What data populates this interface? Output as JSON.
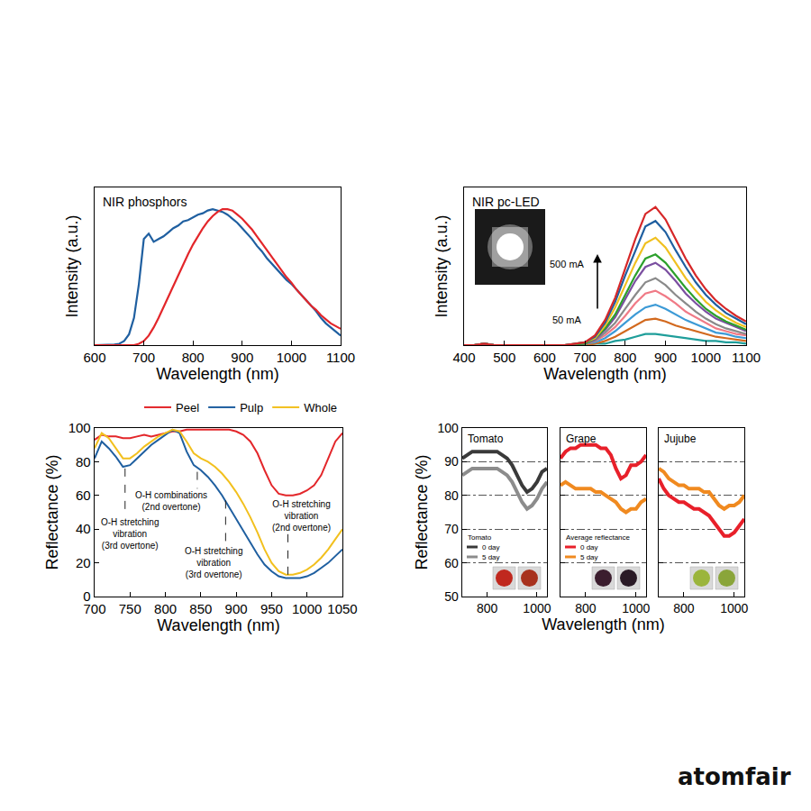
{
  "chart_data": [
    {
      "type": "line",
      "title": "NIR phosphors",
      "x_label": "Wavelength (nm)",
      "y_label": "Intensity (a.u.)",
      "xlim": [
        600,
        1100
      ],
      "xticks": [
        600,
        700,
        800,
        900,
        1000,
        1100
      ],
      "ylim": [
        0,
        1.16
      ],
      "tick_labels": "x",
      "x": [
        600,
        610,
        620,
        630,
        640,
        650,
        660,
        670,
        680,
        690,
        700,
        710,
        720,
        730,
        740,
        750,
        760,
        770,
        780,
        790,
        800,
        810,
        820,
        830,
        840,
        850,
        860,
        870,
        880,
        890,
        900,
        910,
        920,
        930,
        940,
        950,
        960,
        970,
        980,
        990,
        1000,
        1010,
        1020,
        1030,
        1040,
        1050,
        1060,
        1070,
        1080,
        1090,
        1100
      ],
      "series": [
        {
          "color": "#1f5fa0",
          "values": [
            0,
            0,
            0,
            0,
            0.005,
            0.01,
            0.03,
            0.08,
            0.2,
            0.45,
            0.78,
            0.82,
            0.76,
            0.78,
            0.8,
            0.83,
            0.86,
            0.88,
            0.91,
            0.92,
            0.94,
            0.96,
            0.97,
            0.99,
            1.0,
            0.99,
            0.98,
            0.96,
            0.93,
            0.9,
            0.86,
            0.82,
            0.78,
            0.73,
            0.69,
            0.64,
            0.6,
            0.56,
            0.52,
            0.48,
            0.45,
            0.41,
            0.37,
            0.33,
            0.29,
            0.25,
            0.2,
            0.16,
            0.13,
            0.1,
            0.07
          ]
        },
        {
          "color": "#e3262a",
          "values": [
            0,
            0,
            0,
            0,
            0,
            0,
            0,
            0,
            0,
            0.01,
            0.03,
            0.07,
            0.13,
            0.2,
            0.28,
            0.36,
            0.44,
            0.52,
            0.6,
            0.67,
            0.74,
            0.8,
            0.86,
            0.91,
            0.95,
            0.98,
            1.0,
            1.0,
            0.99,
            0.96,
            0.93,
            0.89,
            0.85,
            0.8,
            0.75,
            0.7,
            0.65,
            0.6,
            0.55,
            0.5,
            0.46,
            0.41,
            0.37,
            0.33,
            0.29,
            0.26,
            0.22,
            0.19,
            0.16,
            0.14,
            0.12
          ]
        }
      ]
    },
    {
      "type": "line",
      "title": "NIR pc-LED",
      "x_label": "Wavelength (nm)",
      "y_label": "Intensity (a.u.)",
      "xlim": [
        400,
        1100
      ],
      "xticks": [
        400,
        500,
        600,
        700,
        800,
        900,
        1000,
        1100
      ],
      "ylim": [
        0,
        1.13
      ],
      "tick_labels": "x",
      "annotations": [
        {
          "text": "500 mA",
          "x": 655,
          "y": 0.58
        },
        {
          "text": "50 mA",
          "x": 655,
          "y": 0.18
        }
      ],
      "x": [
        400,
        425,
        450,
        475,
        500,
        550,
        600,
        650,
        700,
        725,
        750,
        775,
        800,
        825,
        850,
        875,
        900,
        925,
        950,
        975,
        1000,
        1025,
        1050,
        1075,
        1100
      ],
      "series": [
        {
          "color": "#1f9e9a",
          "values": [
            0,
            0,
            0.01,
            0,
            0,
            0,
            0,
            0,
            0,
            0.01,
            0.01,
            0.03,
            0.04,
            0.06,
            0.08,
            0.08,
            0.07,
            0.06,
            0.05,
            0.04,
            0.03,
            0.03,
            0.02,
            0.02,
            0.01
          ]
        },
        {
          "color": "#d2691e",
          "values": [
            0,
            0,
            0.01,
            0,
            0,
            0,
            0,
            0,
            0,
            0.01,
            0.03,
            0.06,
            0.1,
            0.14,
            0.18,
            0.19,
            0.17,
            0.14,
            0.12,
            0.1,
            0.08,
            0.06,
            0.05,
            0.04,
            0.03
          ]
        },
        {
          "color": "#3c9ad6",
          "values": [
            0,
            0,
            0.01,
            0,
            0,
            0,
            0,
            0,
            0.01,
            0.02,
            0.05,
            0.1,
            0.16,
            0.22,
            0.27,
            0.29,
            0.26,
            0.22,
            0.18,
            0.15,
            0.12,
            0.09,
            0.08,
            0.06,
            0.05
          ]
        },
        {
          "color": "#f07a86",
          "values": [
            0,
            0,
            0.01,
            0,
            0,
            0,
            0,
            0,
            0.01,
            0.03,
            0.07,
            0.13,
            0.21,
            0.3,
            0.37,
            0.39,
            0.35,
            0.3,
            0.24,
            0.2,
            0.16,
            0.12,
            0.1,
            0.08,
            0.07
          ]
        },
        {
          "color": "#8a8a8a",
          "values": [
            0,
            0,
            0.01,
            0,
            0,
            0,
            0,
            0,
            0.01,
            0.03,
            0.09,
            0.16,
            0.26,
            0.36,
            0.45,
            0.48,
            0.43,
            0.36,
            0.3,
            0.24,
            0.19,
            0.15,
            0.12,
            0.1,
            0.08
          ]
        },
        {
          "color": "#7b4fa0",
          "values": [
            0,
            0,
            0.01,
            0,
            0,
            0,
            0,
            0,
            0.01,
            0.04,
            0.11,
            0.2,
            0.33,
            0.46,
            0.56,
            0.59,
            0.54,
            0.46,
            0.37,
            0.3,
            0.24,
            0.19,
            0.16,
            0.13,
            0.1
          ]
        },
        {
          "color": "#2ca02c",
          "values": [
            0,
            0,
            0.01,
            0,
            0,
            0,
            0,
            0,
            0.01,
            0.05,
            0.12,
            0.22,
            0.36,
            0.5,
            0.62,
            0.65,
            0.59,
            0.5,
            0.41,
            0.33,
            0.26,
            0.21,
            0.17,
            0.14,
            0.11
          ]
        },
        {
          "color": "#f0c020",
          "values": [
            0,
            0,
            0.01,
            0,
            0,
            0,
            0,
            0,
            0.02,
            0.05,
            0.14,
            0.27,
            0.43,
            0.59,
            0.73,
            0.77,
            0.7,
            0.59,
            0.48,
            0.39,
            0.31,
            0.25,
            0.2,
            0.16,
            0.13
          ]
        },
        {
          "color": "#1f5fa0",
          "values": [
            0,
            0,
            0.01,
            0,
            0,
            0,
            0,
            0,
            0.02,
            0.06,
            0.16,
            0.31,
            0.5,
            0.68,
            0.85,
            0.89,
            0.81,
            0.68,
            0.56,
            0.45,
            0.36,
            0.29,
            0.23,
            0.19,
            0.15
          ]
        },
        {
          "color": "#d62728",
          "values": [
            0,
            0,
            0.01,
            0,
            0,
            0,
            0,
            0,
            0.02,
            0.07,
            0.18,
            0.34,
            0.55,
            0.76,
            0.94,
            0.99,
            0.9,
            0.76,
            0.62,
            0.5,
            0.4,
            0.32,
            0.26,
            0.21,
            0.17
          ]
        }
      ]
    },
    {
      "type": "line",
      "x_label": "Wavelength (nm)",
      "y_label": "Reflectance (%)",
      "xlim": [
        700,
        1050
      ],
      "xticks": [
        700,
        750,
        800,
        850,
        900,
        950,
        1000,
        1050
      ],
      "ylim": [
        0,
        100
      ],
      "yticks": [
        0,
        20,
        40,
        60,
        80,
        100
      ],
      "legend": "top",
      "annotations": [
        {
          "text": "O-H stretching vibration (3rd overtone)",
          "x": 750,
          "y": 37,
          "mark_x": 743,
          "mark_y": [
            76,
            48
          ]
        },
        {
          "text": "O-H combinations (2nd overtone)",
          "x": 808,
          "y": 56.5,
          "mark_x": 845,
          "mark_y": [
            74,
            64
          ]
        },
        {
          "text": "O-H stretching vibration (3rd overtone)",
          "x": 868,
          "y": 20,
          "mark_x": 885,
          "mark_y": [
            57,
            31
          ]
        },
        {
          "text": "O-H stretching vibration (2nd overtone)",
          "x": 992,
          "y": 48,
          "mark_x": 973,
          "mark_y": [
            37,
            12
          ]
        }
      ],
      "x": [
        700,
        710,
        720,
        730,
        740,
        750,
        760,
        770,
        780,
        790,
        800,
        810,
        820,
        830,
        840,
        850,
        860,
        870,
        880,
        890,
        900,
        910,
        920,
        930,
        940,
        950,
        960,
        970,
        980,
        990,
        1000,
        1010,
        1020,
        1030,
        1040,
        1050
      ],
      "series": [
        {
          "name": "Peel",
          "color": "#e3262a",
          "values": [
            93,
            96,
            95,
            95,
            94,
            94,
            95,
            96,
            95,
            96,
            97,
            98,
            98,
            99,
            99,
            99,
            99,
            99,
            99,
            99,
            98,
            96,
            92,
            85,
            75,
            66,
            61,
            60,
            60,
            61,
            63,
            66,
            72,
            82,
            92,
            97
          ]
        },
        {
          "name": "Pulp",
          "color": "#1f5fa0",
          "values": [
            82,
            92,
            88,
            83,
            77,
            78,
            82,
            86,
            90,
            93,
            96,
            99,
            97,
            86,
            78,
            75,
            71,
            66,
            60,
            53,
            46,
            39,
            32,
            25,
            19,
            15,
            12,
            11,
            11,
            11,
            12,
            14,
            17,
            20,
            24,
            28
          ]
        },
        {
          "name": "Whole",
          "color": "#f2c01e",
          "values": [
            88,
            97,
            94,
            88,
            82,
            82,
            85,
            89,
            92,
            95,
            97,
            99,
            98,
            92,
            85,
            82,
            80,
            77,
            73,
            68,
            62,
            55,
            47,
            38,
            28,
            20,
            15,
            13,
            13,
            14,
            16,
            19,
            23,
            28,
            34,
            40
          ]
        }
      ]
    },
    {
      "type": "line",
      "title": "Tomato",
      "y_label": "Reflectance (%)",
      "xlim": [
        700,
        1040
      ],
      "xticks": [
        800,
        1000
      ],
      "ylim": [
        50,
        100
      ],
      "yticks": [
        50,
        60,
        70,
        80,
        90,
        100
      ],
      "grid": true,
      "legend": "lower left",
      "legend_title": "Tomato",
      "x": [
        700,
        720,
        740,
        760,
        780,
        800,
        820,
        840,
        860,
        880,
        900,
        920,
        940,
        960,
        980,
        1000,
        1020,
        1040
      ],
      "series": [
        {
          "name": "0 day",
          "color": "#3a3a3a",
          "values": [
            91,
            92,
            93,
            93,
            93,
            93,
            93,
            93,
            92,
            91,
            89,
            86,
            83,
            81,
            82,
            84,
            87,
            88
          ]
        },
        {
          "name": "5 day",
          "color": "#8c8c8c",
          "values": [
            86,
            87,
            88,
            88,
            88,
            88,
            88,
            88,
            87,
            86,
            84,
            81,
            78,
            76,
            77,
            79,
            82,
            84
          ]
        }
      ]
    },
    {
      "type": "line",
      "title": "Grape",
      "x_label": "Wavelength (nm)",
      "xlim": [
        700,
        1040
      ],
      "xticks": [
        800,
        1000
      ],
      "ylim": [
        50,
        100
      ],
      "yticks": [
        50,
        60,
        70,
        80,
        90,
        100
      ],
      "grid": true,
      "tick_labels": "x",
      "legend": "lower left",
      "legend_title": "Average reflectance",
      "x": [
        700,
        720,
        740,
        760,
        780,
        800,
        820,
        840,
        860,
        880,
        900,
        920,
        940,
        960,
        980,
        1000,
        1020,
        1040
      ],
      "series": [
        {
          "name": "0 day",
          "color": "#e8202a",
          "values": [
            91,
            93,
            94,
            94,
            95,
            95,
            95,
            95,
            94,
            94,
            92,
            88,
            85,
            86,
            89,
            89,
            90,
            92
          ]
        },
        {
          "name": "5 day",
          "color": "#f08a20",
          "values": [
            83,
            84,
            83,
            82,
            82,
            82,
            82,
            81,
            81,
            80,
            79,
            78,
            76,
            75,
            76,
            76,
            78,
            79
          ]
        }
      ]
    },
    {
      "type": "line",
      "title": "Jujube",
      "xlim": [
        700,
        1040
      ],
      "xticks": [
        800,
        1000
      ],
      "ylim": [
        50,
        100
      ],
      "yticks": [
        50,
        60,
        70,
        80,
        90,
        100
      ],
      "grid": true,
      "tick_labels": "x",
      "x": [
        700,
        720,
        740,
        760,
        780,
        800,
        820,
        840,
        860,
        880,
        900,
        920,
        940,
        960,
        980,
        1000,
        1020,
        1040
      ],
      "series": [
        {
          "color": "#e8202a",
          "values": [
            85,
            82,
            80,
            79,
            78,
            78,
            77,
            76,
            76,
            75,
            74,
            72,
            70,
            68,
            68,
            69,
            71,
            73
          ]
        },
        {
          "color": "#f08a20",
          "values": [
            88,
            87,
            85,
            84,
            83,
            83,
            82,
            82,
            82,
            81,
            81,
            79,
            77,
            76,
            77,
            77,
            78,
            80
          ]
        }
      ]
    }
  ],
  "footer": "atomfair"
}
